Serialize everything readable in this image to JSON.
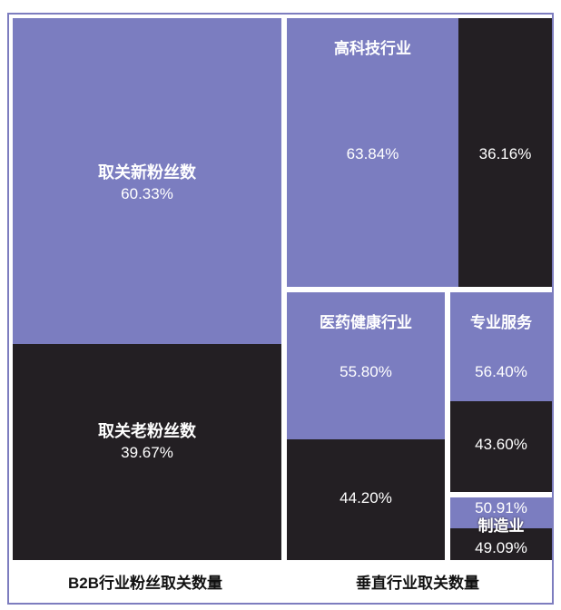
{
  "chart_data": [
    {
      "type": "treemap",
      "title": "B2B行业粉丝取关数量",
      "segments": [
        {
          "label": "取关新粉丝数",
          "value": 60.33,
          "value_text": "60.33%"
        },
        {
          "label": "取关老粉丝数",
          "value": 39.67,
          "value_text": "39.67%"
        }
      ]
    },
    {
      "type": "treemap",
      "title": "垂直行业取关数量",
      "groups": [
        {
          "label": "高科技行业",
          "values": [
            63.84,
            36.16
          ],
          "value_texts": [
            "63.84%",
            "36.16%"
          ]
        },
        {
          "label": "医药健康行业",
          "values": [
            55.8,
            44.2
          ],
          "value_texts": [
            "55.80%",
            "44.20%"
          ]
        },
        {
          "label": "专业服务",
          "values": [
            56.4,
            43.6
          ],
          "value_texts": [
            "56.40%",
            "43.60%"
          ]
        },
        {
          "label": "制造业",
          "values": [
            50.91,
            49.09
          ],
          "value_texts": [
            "50.91%",
            "49.09%"
          ]
        }
      ]
    }
  ],
  "colors": {
    "new_followers": "#7b7dc0",
    "old_followers": "#231f23",
    "border": "#7d7dbf"
  }
}
